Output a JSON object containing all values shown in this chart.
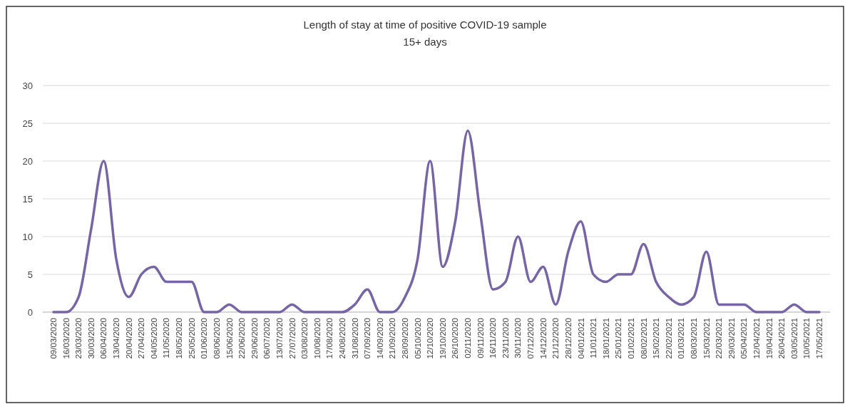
{
  "chart_data": {
    "type": "line",
    "title": "Length of stay at time of positive COVID-19 sample",
    "subtitle": "15+ days",
    "categories": [
      "09/03/2020",
      "16/03/2020",
      "23/03/2020",
      "30/03/2020",
      "06/04/2020",
      "13/04/2020",
      "20/04/2020",
      "27/04/2020",
      "04/05/2020",
      "11/05/2020",
      "18/05/2020",
      "25/05/2020",
      "01/06/2020",
      "08/06/2020",
      "15/06/2020",
      "22/06/2020",
      "29/06/2020",
      "06/07/2020",
      "13/07/2020",
      "27/07/2020",
      "03/08/2020",
      "10/08/2020",
      "17/08/2020",
      "24/08/2020",
      "31/08/2020",
      "07/09/2020",
      "14/09/2020",
      "21/09/2020",
      "28/09/2020",
      "05/10/2020",
      "12/10/2020",
      "19/10/2020",
      "26/10/2020",
      "02/11/2020",
      "09/11/2020",
      "16/11/2020",
      "23/11/2020",
      "30/11/2020",
      "07/12/2020",
      "14/12/2020",
      "21/12/2020",
      "28/12/2020",
      "04/01/2021",
      "11/01/2021",
      "18/01/2021",
      "25/01/2021",
      "01/02/2021",
      "08/02/2021",
      "15/02/2021",
      "22/02/2021",
      "01/03/2021",
      "08/03/2021",
      "15/03/2021",
      "22/03/2021",
      "29/03/2021",
      "05/04/2021",
      "12/04/2021",
      "19/04/2021",
      "26/04/2021",
      "03/05/2021",
      "10/05/2021",
      "17/05/2021"
    ],
    "series": [
      {
        "color": "#7664a6",
        "values": [
          0,
          0,
          2,
          11,
          20,
          7,
          2,
          5,
          6,
          4,
          4,
          4,
          0,
          0,
          1,
          0,
          0,
          0,
          0,
          1,
          0,
          0,
          0,
          0,
          1,
          3,
          0,
          0,
          2,
          7,
          20,
          6,
          12,
          24,
          13,
          3,
          4,
          10,
          4,
          6,
          1,
          8,
          12,
          5,
          4,
          5,
          5,
          9,
          4,
          2,
          1,
          2,
          8,
          1,
          1,
          1,
          0,
          0,
          0,
          1,
          0,
          0
        ]
      }
    ],
    "ylim": [
      0,
      30
    ],
    "yticks": [
      0,
      5,
      10,
      15,
      20,
      25,
      30
    ],
    "grid": "y",
    "marker": "none",
    "line_style": "solid"
  }
}
